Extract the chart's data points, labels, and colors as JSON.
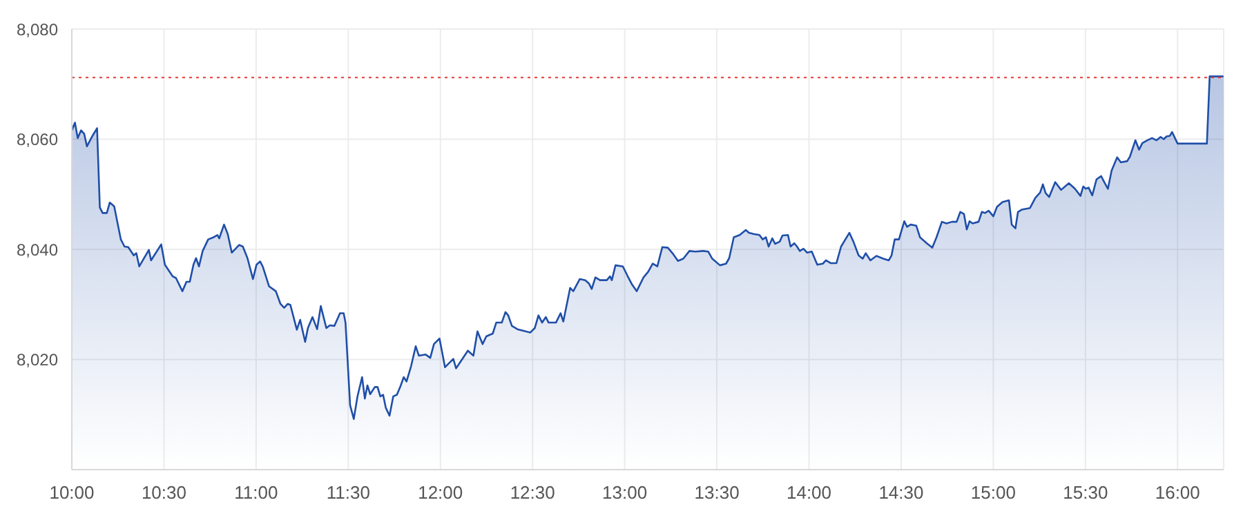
{
  "chart_data": {
    "type": "area",
    "x": [
      10.0,
      10.017,
      10.032,
      10.05,
      10.067,
      10.082,
      10.112,
      10.137,
      10.152,
      10.167,
      10.19,
      10.206,
      10.23,
      10.266,
      10.286,
      10.306,
      10.336,
      10.35,
      10.366,
      10.418,
      10.43,
      10.485,
      10.505,
      10.547,
      10.565,
      10.6,
      10.622,
      10.64,
      10.66,
      10.674,
      10.69,
      10.71,
      10.74,
      10.77,
      10.79,
      10.8,
      10.826,
      10.846,
      10.868,
      10.908,
      10.928,
      10.953,
      10.983,
      11.002,
      11.022,
      11.037,
      11.07,
      11.107,
      11.132,
      11.152,
      11.172,
      11.186,
      11.221,
      11.239,
      11.266,
      11.281,
      11.306,
      11.331,
      11.351,
      11.381,
      11.4,
      11.425,
      11.455,
      11.475,
      11.485,
      11.51,
      11.53,
      11.55,
      11.575,
      11.59,
      11.604,
      11.619,
      11.644,
      11.659,
      11.674,
      11.689,
      11.704,
      11.724,
      11.744,
      11.764,
      11.784,
      11.801,
      11.816,
      11.841,
      11.866,
      11.883,
      11.92,
      11.945,
      11.965,
      11.995,
      12.025,
      12.04,
      12.07,
      12.085,
      12.119,
      12.149,
      12.179,
      12.201,
      12.229,
      12.249,
      12.284,
      12.303,
      12.333,
      12.353,
      12.368,
      12.388,
      12.418,
      12.463,
      12.488,
      12.512,
      12.532,
      12.552,
      12.572,
      12.587,
      12.627,
      12.652,
      12.667,
      12.704,
      12.721,
      12.756,
      12.786,
      12.806,
      12.821,
      12.841,
      12.866,
      12.903,
      12.92,
      12.93,
      12.95,
      12.99,
      13.015,
      13.04,
      13.065,
      13.102,
      13.127,
      13.152,
      13.177,
      13.204,
      13.234,
      13.264,
      13.289,
      13.318,
      13.351,
      13.383,
      13.425,
      13.453,
      13.475,
      13.517,
      13.55,
      13.567,
      13.592,
      13.624,
      13.657,
      13.674,
      13.699,
      13.731,
      13.749,
      13.766,
      13.781,
      13.801,
      13.816,
      13.841,
      13.856,
      13.886,
      13.9,
      13.92,
      13.935,
      13.95,
      13.97,
      13.99,
      14.015,
      14.045,
      14.075,
      14.092,
      14.117,
      14.149,
      14.174,
      14.219,
      14.241,
      14.269,
      14.291,
      14.308,
      14.333,
      14.366,
      14.403,
      14.433,
      14.448,
      14.465,
      14.488,
      14.517,
      14.532,
      14.552,
      14.582,
      14.602,
      14.639,
      14.669,
      14.692,
      14.721,
      14.746,
      14.776,
      14.801,
      14.821,
      14.841,
      14.856,
      14.871,
      14.888,
      14.92,
      14.938,
      14.955,
      14.975,
      15.0,
      15.02,
      15.05,
      15.085,
      15.1,
      15.12,
      15.134,
      15.154,
      15.199,
      15.229,
      15.254,
      15.269,
      15.284,
      15.303,
      15.336,
      15.368,
      15.41,
      15.443,
      15.473,
      15.488,
      15.502,
      15.517,
      15.537,
      15.56,
      15.585,
      15.602,
      15.622,
      15.642,
      15.672,
      15.692,
      15.726,
      15.741,
      15.771,
      15.791,
      15.809,
      15.836,
      15.861,
      15.886,
      15.908,
      15.925,
      15.94,
      15.958,
      15.97,
      16.0,
      16.159,
      16.174,
      16.249
    ],
    "series": [
      {
        "color": "#1f4ea8",
        "values": [
          8061.6,
          8063.0,
          8060.2,
          8061.6,
          8061.0,
          8058.7,
          8060.6,
          8062.0,
          8047.6,
          8046.6,
          8046.6,
          8048.5,
          8047.8,
          8041.8,
          8040.5,
          8040.4,
          8038.9,
          8039.3,
          8036.9,
          8039.9,
          8038.0,
          8040.9,
          8037.2,
          8035.1,
          8034.8,
          8032.4,
          8034.1,
          8034.1,
          8037.2,
          8038.4,
          8036.9,
          8039.7,
          8041.8,
          8042.2,
          8042.6,
          8042.0,
          8044.5,
          8042.8,
          8039.4,
          8040.8,
          8040.5,
          8038.4,
          8034.6,
          8037.2,
          8037.8,
          8036.8,
          8033.3,
          8032.4,
          8030.1,
          8029.4,
          8030.1,
          8029.9,
          8025.4,
          8027.2,
          8023.2,
          8025.7,
          8027.7,
          8025.5,
          8029.7,
          8025.7,
          8026.2,
          8026.1,
          8028.4,
          8028.4,
          8026.7,
          8011.7,
          8009.2,
          8013.3,
          8016.8,
          8012.9,
          8015.3,
          8013.7,
          8015.0,
          8015.0,
          8013.3,
          8013.6,
          8011.2,
          8009.8,
          8013.3,
          8013.6,
          8015.2,
          8016.8,
          8016.0,
          8018.8,
          8022.4,
          8020.7,
          8020.9,
          8020.3,
          8022.8,
          8023.8,
          8018.6,
          8019.1,
          8020.1,
          8018.4,
          8020.1,
          8021.6,
          8020.7,
          8025.1,
          8022.8,
          8024.2,
          8024.7,
          8026.7,
          8026.7,
          8028.6,
          8028.0,
          8026.1,
          8025.5,
          8025.1,
          8024.9,
          8025.7,
          8028.0,
          8026.7,
          8027.7,
          8026.7,
          8026.7,
          8028.4,
          8026.9,
          8033.0,
          8032.4,
          8034.6,
          8034.4,
          8033.8,
          8032.8,
          8034.9,
          8034.4,
          8034.4,
          8035.1,
          8034.4,
          8037.1,
          8036.9,
          8035.2,
          8033.6,
          8032.4,
          8034.9,
          8035.9,
          8037.4,
          8036.9,
          8040.4,
          8040.3,
          8039.1,
          8037.9,
          8038.3,
          8039.7,
          8039.6,
          8039.7,
          8039.6,
          8038.3,
          8037.1,
          8037.4,
          8038.4,
          8042.2,
          8042.6,
          8043.5,
          8043.0,
          8042.8,
          8042.6,
          8041.8,
          8042.2,
          8040.5,
          8042.0,
          8041.0,
          8041.4,
          8042.5,
          8042.6,
          8040.5,
          8041.1,
          8040.5,
          8039.7,
          8040.1,
          8039.4,
          8039.6,
          8037.2,
          8037.4,
          8038.0,
          8037.5,
          8037.5,
          8040.5,
          8043.0,
          8041.4,
          8038.9,
          8038.3,
          8039.3,
          8038.0,
          8038.8,
          8038.3,
          8038.0,
          8038.9,
          8041.8,
          8041.8,
          8045.1,
          8044.1,
          8044.5,
          8044.3,
          8042.2,
          8041.1,
          8040.3,
          8042.2,
          8045.0,
          8044.7,
          8045.0,
          8045.0,
          8046.8,
          8046.4,
          8043.6,
          8045.1,
          8044.7,
          8045.0,
          8046.8,
          8046.6,
          8047.0,
          8046.0,
          8047.7,
          8048.6,
          8048.9,
          8044.5,
          8043.8,
          8046.8,
          8047.2,
          8047.5,
          8049.4,
          8050.3,
          8051.8,
          8050.2,
          8049.5,
          8052.2,
          8050.8,
          8052.0,
          8051.0,
          8049.7,
          8051.4,
          8051.0,
          8051.2,
          8049.8,
          8052.7,
          8053.3,
          8052.2,
          8051.0,
          8054.3,
          8056.7,
          8055.8,
          8056.0,
          8056.8,
          8059.8,
          8058.1,
          8059.3,
          8059.8,
          8060.2,
          8059.8,
          8060.4,
          8060.0,
          8060.5,
          8060.6,
          8061.3,
          8059.2,
          8059.2,
          8071.4,
          8071.4
        ]
      }
    ],
    "xlim": [
      10,
      16.25
    ],
    "xticks": [
      {
        "value": 10,
        "label": "10:00"
      },
      {
        "value": 10.5,
        "label": "10:30"
      },
      {
        "value": 11,
        "label": "11:00"
      },
      {
        "value": 11.5,
        "label": "11:30"
      },
      {
        "value": 12,
        "label": "12:00"
      },
      {
        "value": 12.5,
        "label": "12:30"
      },
      {
        "value": 13,
        "label": "13:00"
      },
      {
        "value": 13.5,
        "label": "13:30"
      },
      {
        "value": 14,
        "label": "14:00"
      },
      {
        "value": 14.5,
        "label": "14:30"
      },
      {
        "value": 15,
        "label": "15:00"
      },
      {
        "value": 15.5,
        "label": "15:30"
      },
      {
        "value": 16,
        "label": "16:00"
      }
    ],
    "ylim": [
      8000,
      8080
    ],
    "yticks": [
      {
        "value": 8000,
        "label": null
      },
      {
        "value": 8020,
        "label": "8,020"
      },
      {
        "value": 8040,
        "label": "8,040"
      },
      {
        "value": 8060,
        "label": "8,060"
      },
      {
        "value": 8080,
        "label": "8,080"
      }
    ],
    "ref_lines": [
      {
        "axis": "y",
        "value": 8071.2,
        "color": "#e53935",
        "line_style": "dotted"
      }
    ],
    "grid": true
  }
}
